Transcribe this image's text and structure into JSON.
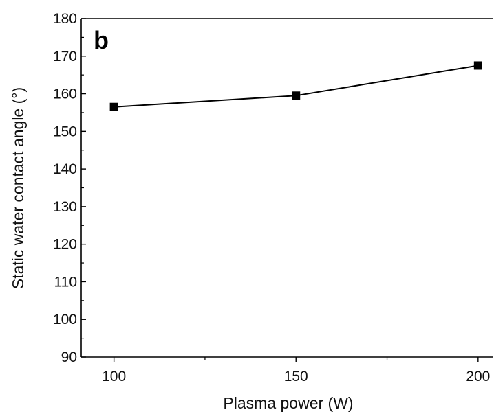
{
  "chart_data": {
    "type": "line",
    "panel_label": "b",
    "title": "",
    "xlabel": "Plasma power (W)",
    "ylabel": "Static water contact angle (°)",
    "x": [
      100,
      150,
      200
    ],
    "series": [
      {
        "values": [
          156.5,
          159.5,
          167.5
        ],
        "color": "#000000",
        "marker": "square"
      }
    ],
    "xlim": [
      91,
      204
    ],
    "ylim": [
      90,
      180
    ],
    "xticks": [
      100,
      150,
      200
    ],
    "xticks_minor": [
      125,
      175
    ],
    "yticks": [
      90,
      100,
      110,
      120,
      130,
      140,
      150,
      160,
      170,
      180
    ],
    "yticks_minor": [
      95,
      105,
      115,
      125,
      135,
      145,
      155,
      165,
      175
    ],
    "grid": false,
    "legend": "none"
  }
}
